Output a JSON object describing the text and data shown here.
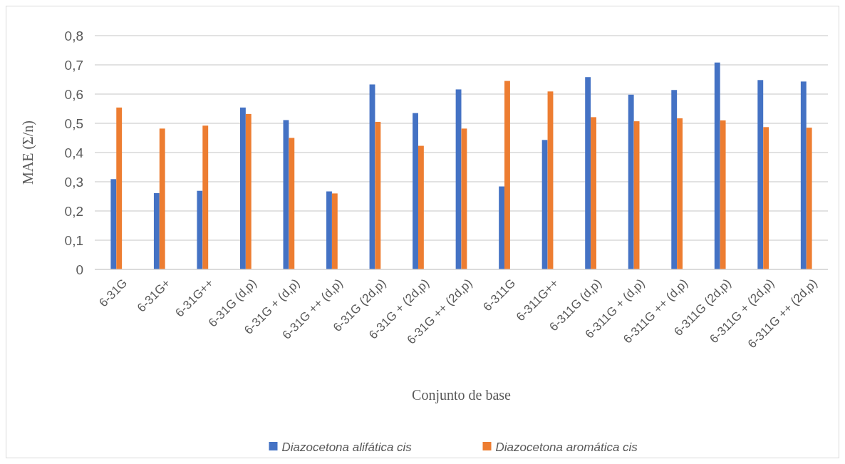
{
  "chart_data": {
    "type": "bar",
    "xlabel": "Conjunto de base",
    "ylabel": "MAE (Σ/n)",
    "categories": [
      "6-31G",
      "6-31G+",
      "6-31G++",
      "6-31G (d,p)",
      "6-31G + (d,p)",
      "6-31G ++ (d,p)",
      "6-31G (2d,p)",
      "6-31G + (2d,p)",
      "6-31G ++ (2d,p)",
      "6-311G",
      "6-311G++",
      "6-311G (d,p)",
      "6-311G + (d,p)",
      "6-311G ++ (d,p)",
      "6-311G (2d,p)",
      "6-311G + (2d,p)",
      "6-311G ++ (2d,p)"
    ],
    "series": [
      {
        "name": "Diazocetona alifática cis",
        "color": "#4472c4",
        "values": [
          0.309,
          0.261,
          0.269,
          0.554,
          0.511,
          0.267,
          0.633,
          0.535,
          0.616,
          0.284,
          0.443,
          0.658,
          0.598,
          0.614,
          0.708,
          0.648,
          0.643
        ]
      },
      {
        "name": "Diazocetona aromática cis",
        "color": "#ed7d31",
        "values": [
          0.554,
          0.482,
          0.492,
          0.532,
          0.45,
          0.26,
          0.505,
          0.423,
          0.482,
          0.645,
          0.609,
          0.521,
          0.507,
          0.517,
          0.51,
          0.487,
          0.485
        ]
      }
    ],
    "ylim": [
      0,
      0.8
    ],
    "yticks": [
      {
        "value": 0,
        "label": "0"
      },
      {
        "value": 0.1,
        "label": "0,1"
      },
      {
        "value": 0.2,
        "label": "0,2"
      },
      {
        "value": 0.3,
        "label": "0,3"
      },
      {
        "value": 0.4,
        "label": "0,4"
      },
      {
        "value": 0.5,
        "label": "0,5"
      },
      {
        "value": 0.6,
        "label": "0,6"
      },
      {
        "value": 0.7,
        "label": "0,7"
      },
      {
        "value": 0.8,
        "label": "0,8"
      }
    ],
    "grid": "y",
    "legend": "bottom"
  }
}
